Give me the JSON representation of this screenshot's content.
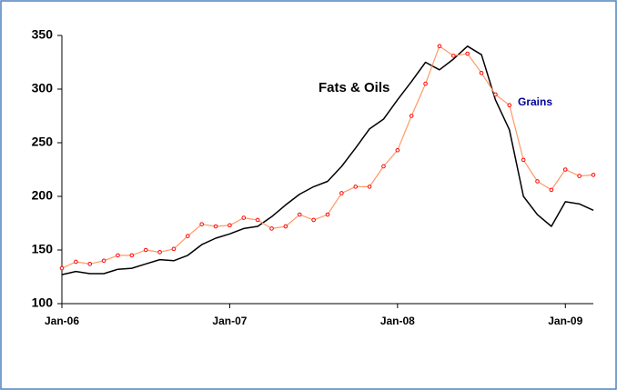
{
  "chart_data": {
    "type": "line",
    "categories": [
      "Jan-06",
      null,
      null,
      null,
      null,
      null,
      null,
      null,
      null,
      null,
      null,
      null,
      "Jan-07",
      null,
      null,
      null,
      null,
      null,
      null,
      null,
      null,
      null,
      null,
      null,
      "Jan-08",
      null,
      null,
      null,
      null,
      null,
      null,
      null,
      null,
      null,
      null,
      null,
      "Jan-09",
      null,
      null
    ],
    "series": [
      {
        "name": "Fats & Oils",
        "color": "#000000",
        "values": [
          127,
          130,
          128,
          128,
          132,
          133,
          137,
          141,
          140,
          145,
          155,
          161,
          165,
          170,
          172,
          181,
          192,
          202,
          209,
          214,
          228,
          245,
          263,
          272,
          290,
          307,
          325,
          318,
          328,
          340,
          332,
          290,
          262,
          200,
          183,
          172,
          195,
          193,
          187
        ]
      },
      {
        "name": "Grains",
        "color": "#ff9966",
        "values": [
          133,
          139,
          137,
          140,
          145,
          145,
          150,
          148,
          151,
          163,
          174,
          172,
          173,
          180,
          178,
          170,
          172,
          183,
          178,
          183,
          203,
          209,
          209,
          228,
          243,
          275,
          305,
          340,
          331,
          333,
          315,
          295,
          285,
          234,
          214,
          206,
          225,
          219,
          220
        ]
      }
    ],
    "ylim": [
      100,
      350
    ],
    "yticks": [
      100,
      150,
      200,
      250,
      300,
      350
    ],
    "grid": false
  }
}
